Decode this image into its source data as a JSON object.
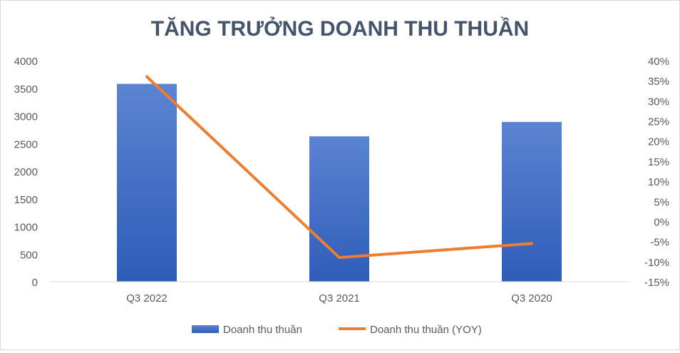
{
  "chart_data": {
    "type": "bar",
    "title": "TĂNG TRƯỞNG DOANH THU THUẦN",
    "categories": [
      "Q3 2022",
      "Q3 2021",
      "Q3 2020"
    ],
    "series": [
      {
        "name": "Doanh thu thuần",
        "type": "bar",
        "axis": "left",
        "values": [
          3580,
          2630,
          2890
        ]
      },
      {
        "name": "Doanh thu thuần (YOY)",
        "type": "line",
        "axis": "right",
        "values": [
          0.36,
          -0.09,
          -0.055
        ]
      }
    ],
    "y_left": {
      "ylim": [
        0,
        4000
      ],
      "ticks": [
        "0",
        "500",
        "1000",
        "1500",
        "2000",
        "2500",
        "3000",
        "3500",
        "4000"
      ]
    },
    "y_right": {
      "ylim": [
        -0.15,
        0.4
      ],
      "ticks": [
        "-15%",
        "-10%",
        "-5%",
        "0%",
        "5%",
        "10%",
        "15%",
        "20%",
        "25%",
        "30%",
        "35%",
        "40%"
      ]
    },
    "grid": false,
    "legend_position": "bottom",
    "colors": {
      "bar": "#4472c4",
      "bar_top": "#5b84d1",
      "bar_bottom": "#2e5cb8",
      "line": "#ed7d31",
      "axis": "#d9d9d9",
      "title": "#44546a",
      "text": "#595959"
    }
  }
}
